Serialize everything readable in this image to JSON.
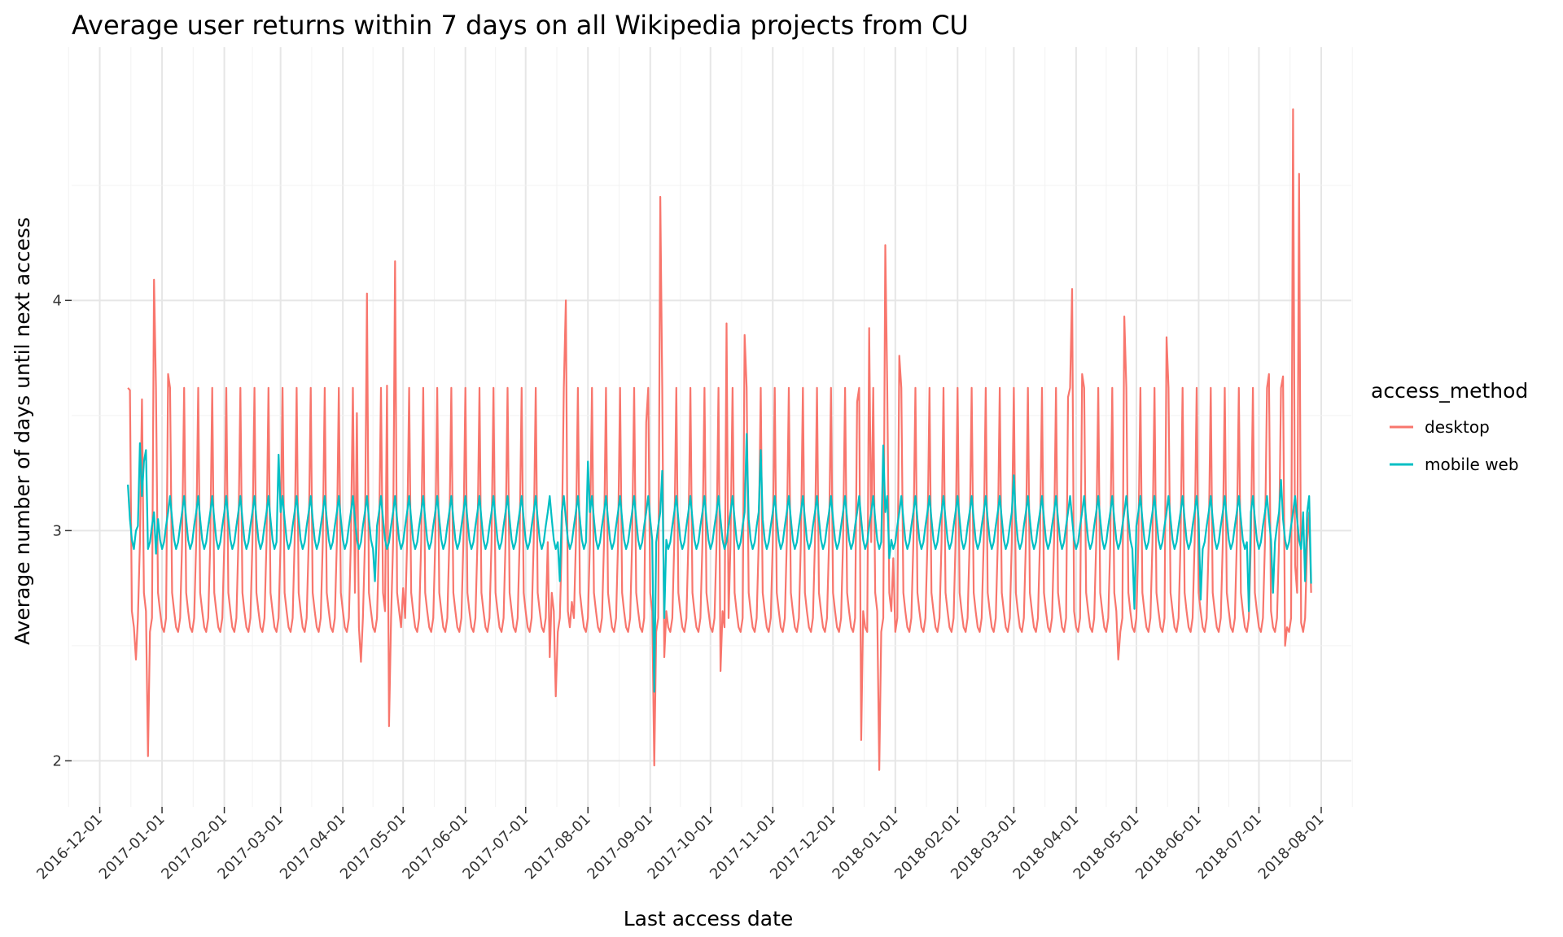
{
  "chart_data": {
    "type": "line",
    "title": "Average user returns within 7 days on all Wikipedia projects from CU",
    "xlabel": "Last access date",
    "ylabel": "Average number of days until next access",
    "x_range": [
      "2016-11-17",
      "2018-08-16"
    ],
    "x_ticks": [
      "2016-12-01",
      "2017-01-01",
      "2017-02-01",
      "2017-03-01",
      "2017-04-01",
      "2017-05-01",
      "2017-06-01",
      "2017-07-01",
      "2017-08-01",
      "2017-09-01",
      "2017-10-01",
      "2017-11-01",
      "2017-12-01",
      "2018-01-01",
      "2018-02-01",
      "2018-03-01",
      "2018-04-01",
      "2018-05-01",
      "2018-06-01",
      "2018-07-01",
      "2018-08-01"
    ],
    "ylim": [
      1.8,
      5.1
    ],
    "y_ticks": [
      2,
      3,
      4
    ],
    "grid": true,
    "legend": {
      "title": "access_method",
      "placement": "right"
    },
    "series": [
      {
        "name": "desktop",
        "color": "#F8766D",
        "x_start": "2016-12-15",
        "x_end": "2018-07-27",
        "weekly_profile": [
          3.62,
          2.73,
          2.65,
          2.58,
          2.56,
          2.62,
          2.95
        ],
        "spikes": [
          {
            "x": "2016-12-16",
            "y": 3.61
          },
          {
            "x": "2016-12-19",
            "y": 2.44
          },
          {
            "x": "2016-12-22",
            "y": 3.57
          },
          {
            "x": "2016-12-25",
            "y": 2.02
          },
          {
            "x": "2016-12-28",
            "y": 4.09
          },
          {
            "x": "2017-01-04",
            "y": 3.68
          },
          {
            "x": "2017-04-08",
            "y": 3.51
          },
          {
            "x": "2017-04-10",
            "y": 2.43
          },
          {
            "x": "2017-04-13",
            "y": 4.03
          },
          {
            "x": "2017-04-23",
            "y": 3.63
          },
          {
            "x": "2017-04-24",
            "y": 2.15
          },
          {
            "x": "2017-04-27",
            "y": 4.17
          },
          {
            "x": "2017-05-01",
            "y": 2.75
          },
          {
            "x": "2017-07-13",
            "y": 2.45
          },
          {
            "x": "2017-07-16",
            "y": 2.28
          },
          {
            "x": "2017-07-21",
            "y": 4.0
          },
          {
            "x": "2017-07-24",
            "y": 2.69
          },
          {
            "x": "2017-08-30",
            "y": 3.47
          },
          {
            "x": "2017-09-03",
            "y": 1.98
          },
          {
            "x": "2017-09-06",
            "y": 4.45
          },
          {
            "x": "2017-09-08",
            "y": 2.45
          },
          {
            "x": "2017-10-06",
            "y": 2.39
          },
          {
            "x": "2017-10-09",
            "y": 3.9
          },
          {
            "x": "2017-10-18",
            "y": 3.85
          },
          {
            "x": "2017-12-13",
            "y": 3.56
          },
          {
            "x": "2017-12-15",
            "y": 2.09
          },
          {
            "x": "2017-12-19",
            "y": 3.88
          },
          {
            "x": "2017-12-24",
            "y": 1.96
          },
          {
            "x": "2017-12-27",
            "y": 4.24
          },
          {
            "x": "2017-12-31",
            "y": 2.88
          },
          {
            "x": "2018-01-03",
            "y": 3.76
          },
          {
            "x": "2018-03-28",
            "y": 3.58
          },
          {
            "x": "2018-03-30",
            "y": 4.05
          },
          {
            "x": "2018-04-04",
            "y": 3.68
          },
          {
            "x": "2018-04-22",
            "y": 2.44
          },
          {
            "x": "2018-04-25",
            "y": 3.93
          },
          {
            "x": "2018-05-16",
            "y": 3.84
          },
          {
            "x": "2018-07-06",
            "y": 3.68
          },
          {
            "x": "2018-07-13",
            "y": 3.67
          },
          {
            "x": "2018-07-14",
            "y": 2.5
          },
          {
            "x": "2018-07-18",
            "y": 4.83
          },
          {
            "x": "2018-07-19",
            "y": 2.85
          },
          {
            "x": "2018-07-21",
            "y": 4.55
          },
          {
            "x": "2018-07-22",
            "y": 2.6
          },
          {
            "x": "2018-07-26",
            "y": 3.08
          }
        ]
      },
      {
        "name": "mobile web",
        "color": "#00BFC4",
        "x_start": "2016-12-15",
        "x_end": "2018-07-27",
        "weekly_profile": [
          3.15,
          3.05,
          2.96,
          2.92,
          2.95,
          3.02,
          3.08
        ],
        "spikes": [
          {
            "x": "2016-12-15",
            "y": 3.2
          },
          {
            "x": "2016-12-19",
            "y": 3.0
          },
          {
            "x": "2016-12-21",
            "y": 3.38
          },
          {
            "x": "2016-12-23",
            "y": 3.3
          },
          {
            "x": "2016-12-24",
            "y": 3.35
          },
          {
            "x": "2016-12-29",
            "y": 2.9
          },
          {
            "x": "2017-02-28",
            "y": 3.33
          },
          {
            "x": "2017-04-17",
            "y": 2.78
          },
          {
            "x": "2017-07-18",
            "y": 2.78
          },
          {
            "x": "2017-08-01",
            "y": 3.3
          },
          {
            "x": "2017-09-03",
            "y": 2.3
          },
          {
            "x": "2017-09-07",
            "y": 3.26
          },
          {
            "x": "2017-09-08",
            "y": 2.62
          },
          {
            "x": "2017-10-19",
            "y": 3.42
          },
          {
            "x": "2017-10-26",
            "y": 3.35
          },
          {
            "x": "2017-12-26",
            "y": 3.37
          },
          {
            "x": "2017-12-29",
            "y": 2.88
          },
          {
            "x": "2018-03-01",
            "y": 3.24
          },
          {
            "x": "2018-04-30",
            "y": 2.66
          },
          {
            "x": "2018-06-02",
            "y": 2.7
          },
          {
            "x": "2018-06-26",
            "y": 2.65
          },
          {
            "x": "2018-07-08",
            "y": 2.73
          },
          {
            "x": "2018-07-12",
            "y": 3.22
          },
          {
            "x": "2018-07-23",
            "y": 3.08
          },
          {
            "x": "2018-07-24",
            "y": 2.78
          },
          {
            "x": "2018-07-27",
            "y": 2.77
          }
        ]
      }
    ]
  }
}
